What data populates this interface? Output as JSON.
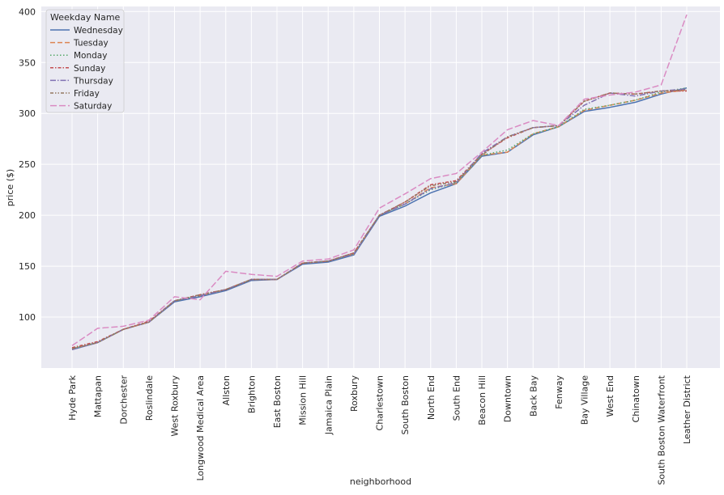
{
  "chart_data": {
    "type": "line",
    "title": "",
    "xlabel": "neighborhood",
    "ylabel": "price ($)",
    "ylim": [
      50,
      405
    ],
    "yticks": [
      100,
      150,
      200,
      250,
      300,
      350,
      400
    ],
    "grid": true,
    "legend": {
      "title": "Weekday Name",
      "placement": "top-left"
    },
    "categories": [
      "Hyde Park",
      "Mattapan",
      "Dorchester",
      "Roslindale",
      "West Roxbury",
      "Longwood Medical Area",
      "Allston",
      "Brighton",
      "East Boston",
      "Mission Hill",
      "Jamaica Plain",
      "Roxbury",
      "Charlestown",
      "South Boston",
      "North End",
      "South End",
      "Beacon Hill",
      "Downtown",
      "Back Bay",
      "Fenway",
      "Bay Village",
      "West End",
      "Chinatown",
      "South Boston Waterfront",
      "Leather District"
    ],
    "series": [
      {
        "name": "Wednesday",
        "color": "#4c72b0",
        "dash": "",
        "values": [
          68,
          75,
          88,
          95,
          115,
          120,
          126,
          136,
          137,
          152,
          154,
          161,
          199,
          209,
          222,
          231,
          258,
          262,
          279,
          287,
          302,
          306,
          311,
          319,
          325
        ]
      },
      {
        "name": "Tuesday",
        "color": "#dd8452",
        "dash": "6,3",
        "values": [
          69,
          75,
          88,
          95,
          116,
          121,
          127,
          137,
          137,
          153,
          155,
          162,
          200,
          211,
          227,
          231,
          259,
          262,
          280,
          287,
          303,
          308,
          313,
          320,
          323
        ]
      },
      {
        "name": "Monday",
        "color": "#55a868",
        "dash": "1.5,2.5",
        "values": [
          69,
          75,
          88,
          95,
          116,
          121,
          127,
          137,
          137,
          153,
          155,
          162,
          200,
          211,
          225,
          232,
          259,
          264,
          280,
          287,
          304,
          308,
          313,
          321,
          325
        ]
      },
      {
        "name": "Sunday",
        "color": "#c44e52",
        "dash": "4,2,1.5,2",
        "values": [
          70,
          76,
          88,
          96,
          116,
          122,
          127,
          137,
          137,
          153,
          155,
          163,
          200,
          213,
          230,
          234,
          260,
          276,
          286,
          288,
          312,
          320,
          319,
          322,
          322
        ]
      },
      {
        "name": "Thursday",
        "color": "#8172b3",
        "dash": "7,2,1.5,2",
        "values": [
          68,
          75,
          88,
          95,
          116,
          121,
          127,
          137,
          137,
          153,
          155,
          162,
          200,
          211,
          226,
          232,
          261,
          277,
          286,
          288,
          308,
          320,
          317,
          322,
          324
        ]
      },
      {
        "name": "Friday",
        "color": "#937860",
        "dash": "4,2,1.5,2,1.5,2",
        "values": [
          69,
          75,
          88,
          95,
          116,
          122,
          127,
          137,
          137,
          153,
          155,
          163,
          200,
          213,
          229,
          233,
          259,
          277,
          286,
          288,
          312,
          320,
          319,
          322,
          323
        ]
      },
      {
        "name": "Saturday",
        "color": "#da8bc3",
        "dash": "8,3",
        "values": [
          72,
          89,
          91,
          97,
          120,
          117,
          145,
          142,
          140,
          155,
          157,
          166,
          207,
          221,
          236,
          241,
          262,
          284,
          293,
          288,
          314,
          318,
          321,
          328,
          397
        ]
      }
    ]
  }
}
